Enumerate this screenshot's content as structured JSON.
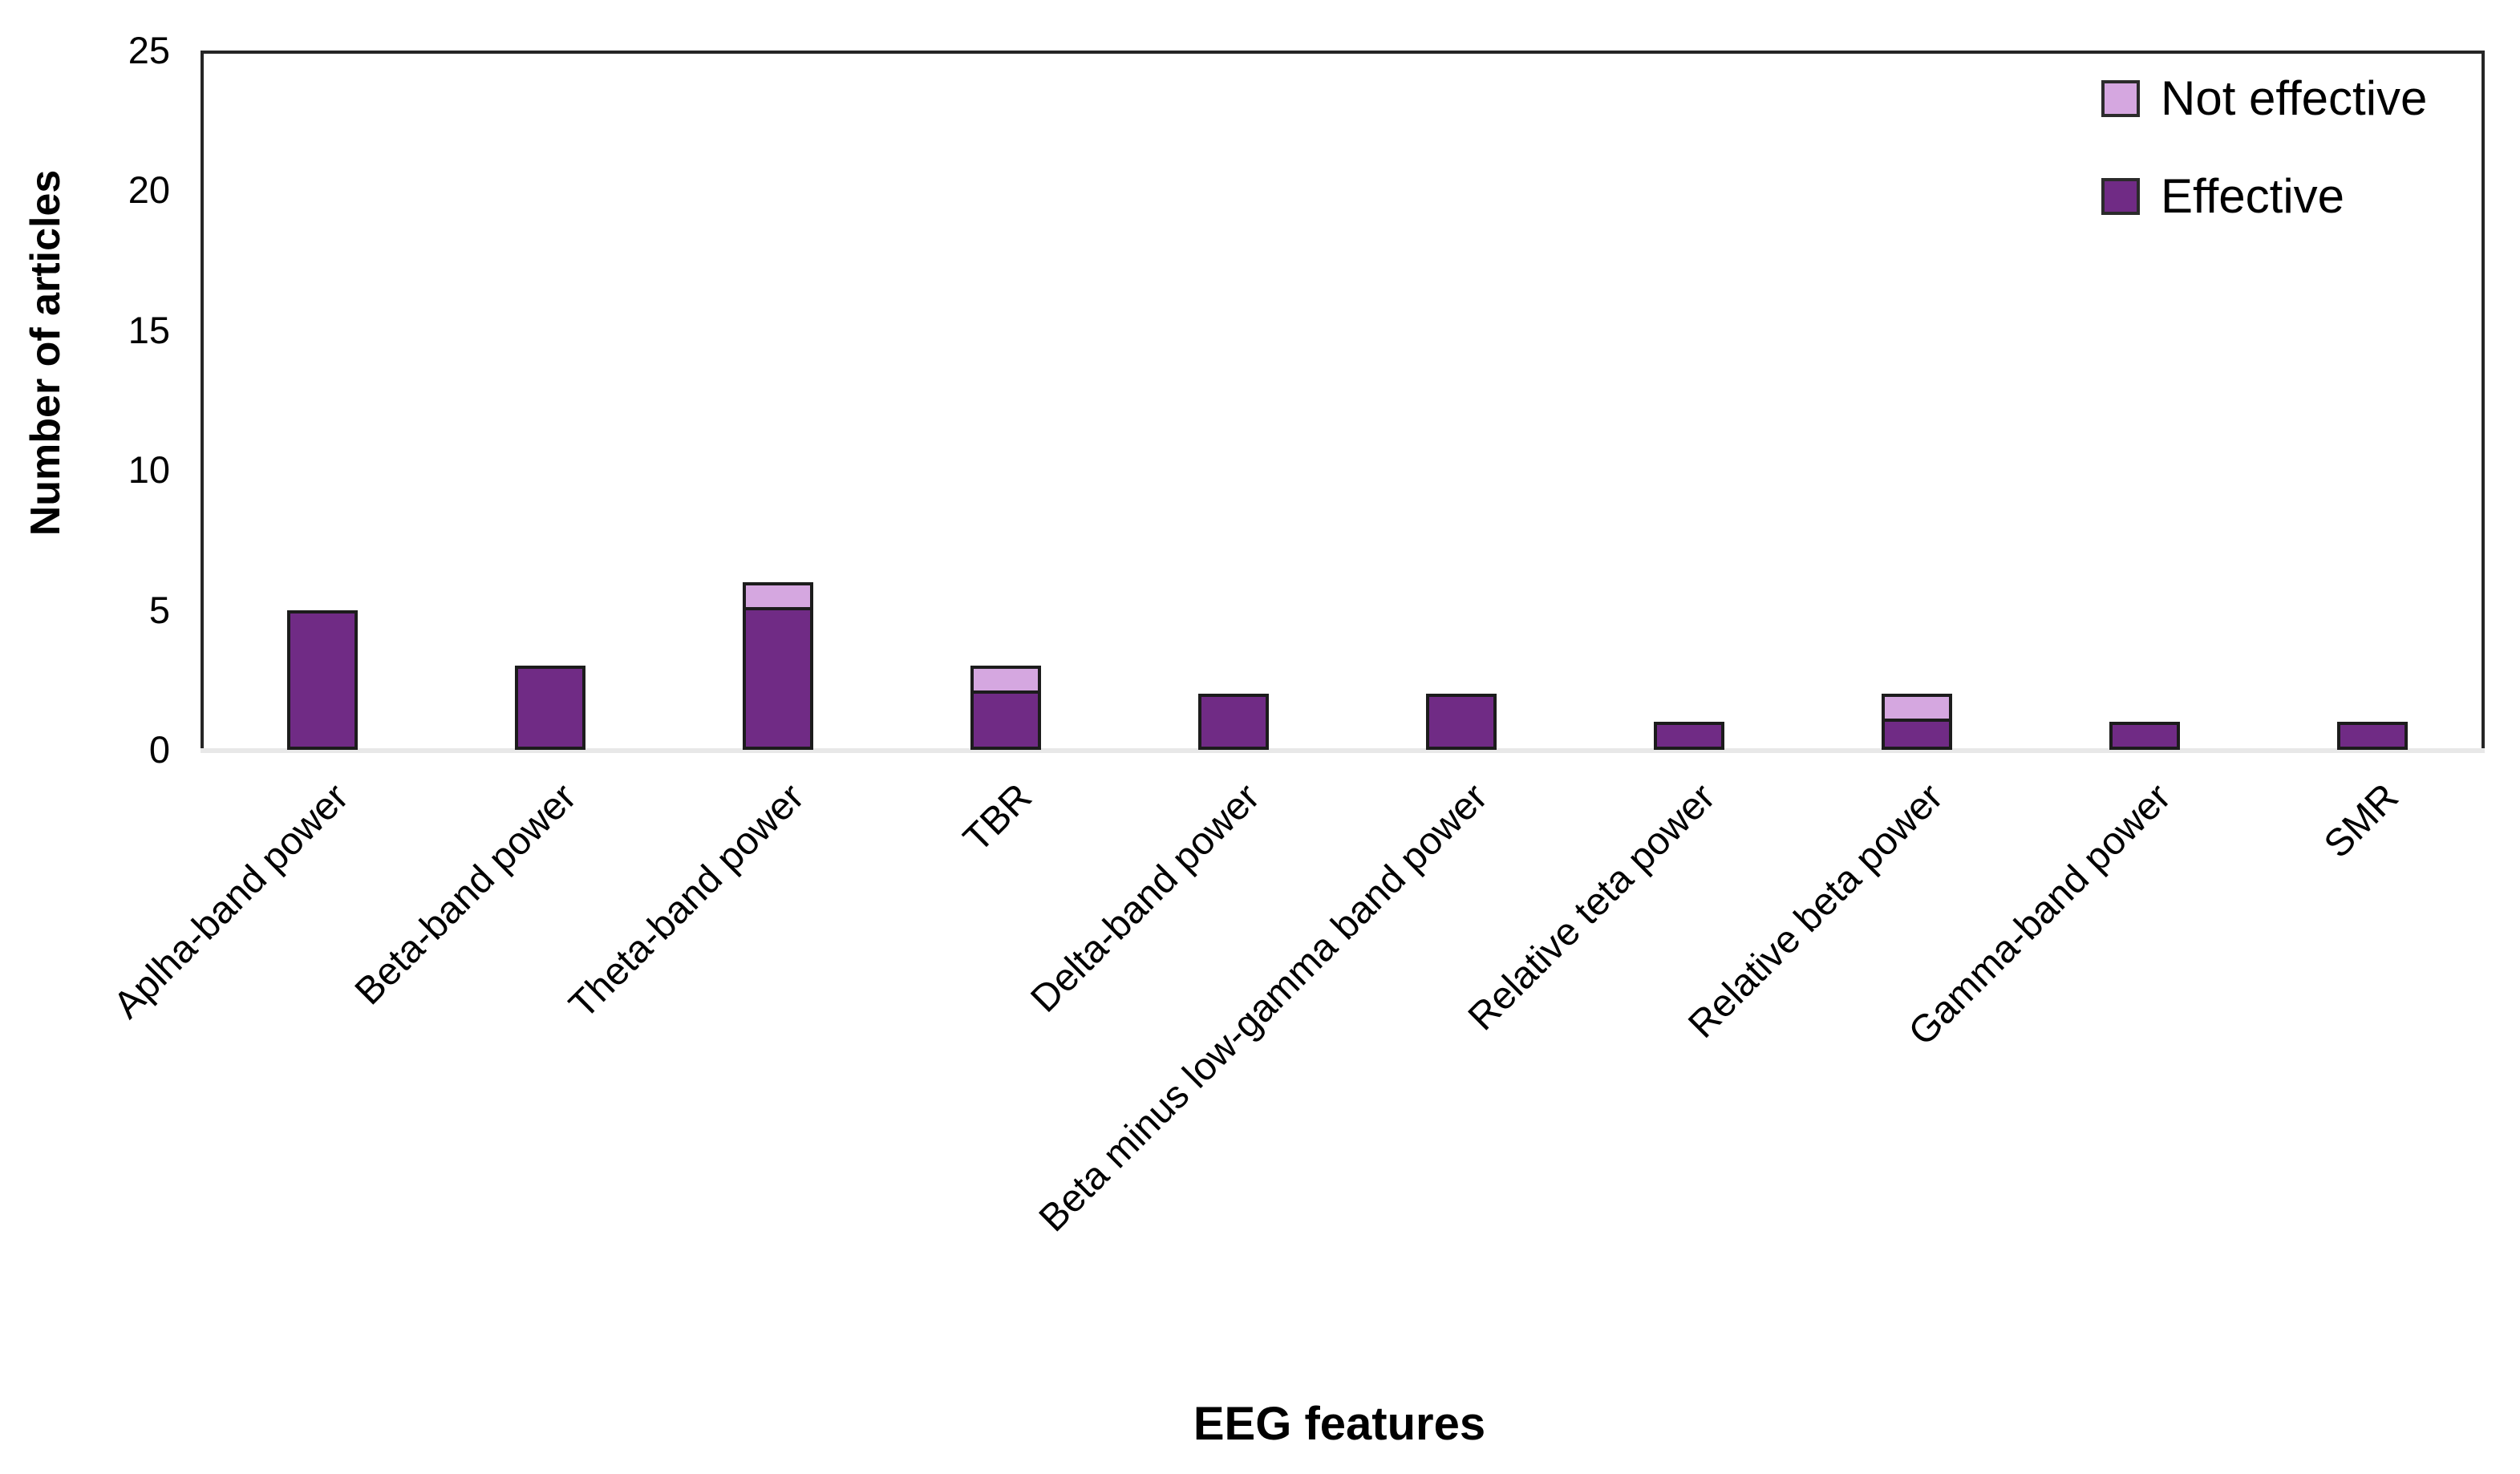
{
  "chart_data": {
    "type": "bar",
    "stacked": true,
    "title": "",
    "xlabel": "EEG features",
    "ylabel": "Number of articles",
    "ylim": [
      0,
      25
    ],
    "yticks": [
      0,
      5,
      10,
      15,
      20,
      25
    ],
    "grid": false,
    "legend_position": "top-right",
    "legend_order": [
      "Not effective",
      "Effective"
    ],
    "categories": [
      "Aplha-band power",
      "Beta-band power",
      "Theta-band power",
      "TBR",
      "Delta-band power",
      "Beta minus low-gamma band power",
      "Relative teta power",
      "Relative beta power",
      "Gamma-band power",
      "SMR"
    ],
    "series": [
      {
        "name": "Effective",
        "color": "#702b85",
        "values": [
          5,
          3,
          5,
          2,
          2,
          2,
          1,
          1,
          1,
          1
        ]
      },
      {
        "name": "Not effective",
        "color": "#d5a7e0",
        "values": [
          0,
          0,
          1,
          1,
          0,
          0,
          0,
          1,
          0,
          0
        ]
      }
    ],
    "colors": {
      "effective": "#702b85",
      "not_effective": "#d5a7e0",
      "bar_border": "#1c1c1c",
      "axis_dark": "#262626",
      "axis_light": "#e8e8e8"
    }
  }
}
